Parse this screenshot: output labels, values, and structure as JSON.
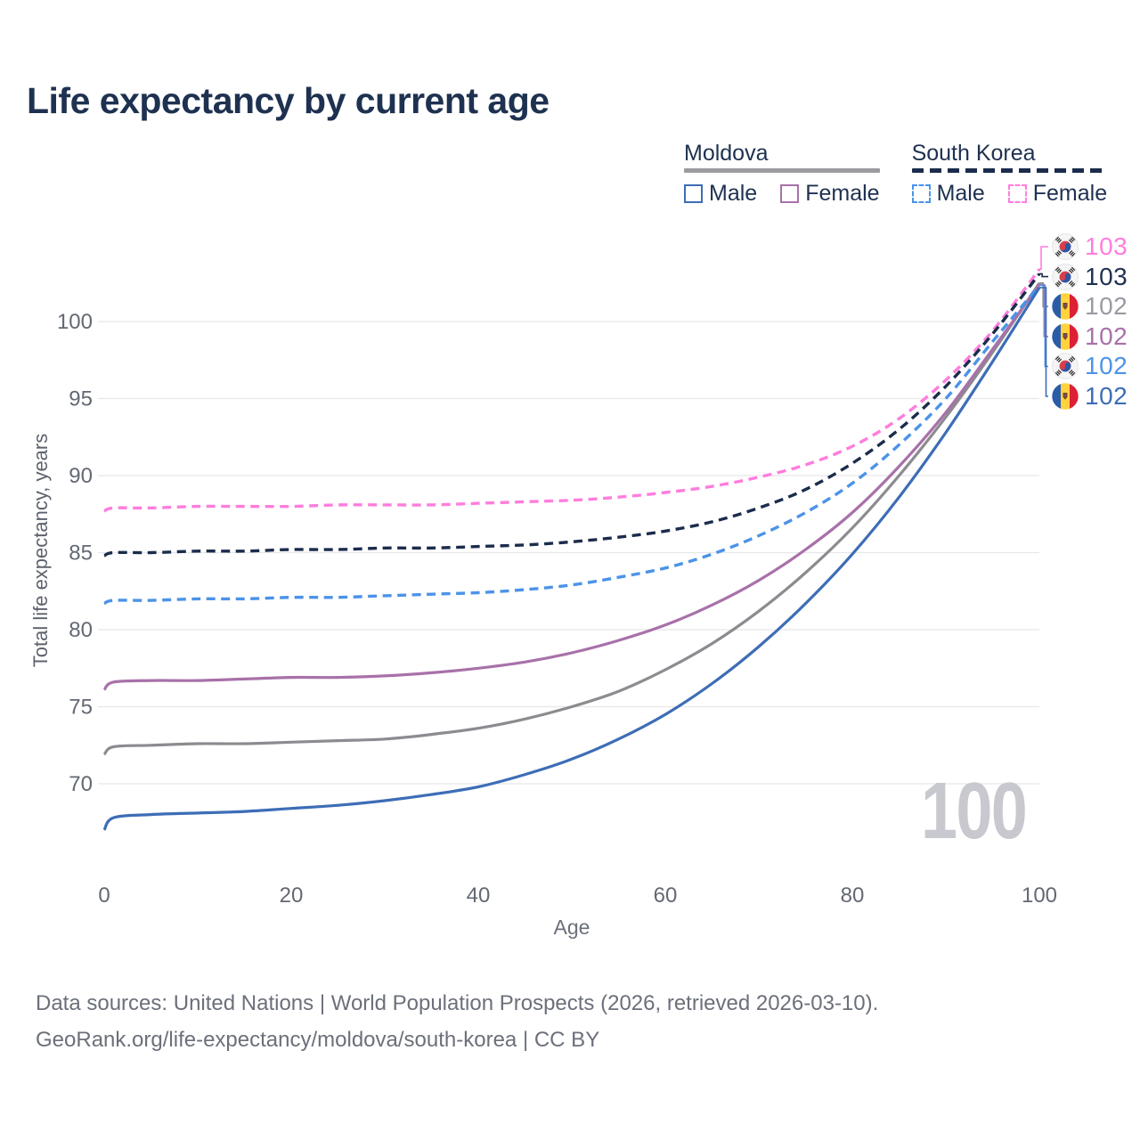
{
  "title": "Life expectancy by current age",
  "watermark_age": "100",
  "legend": {
    "groups": [
      {
        "name": "Moldova",
        "line_style": "solid",
        "line_color": "#9b9ba1",
        "items": [
          {
            "label": "Male",
            "color": "#3d6db6",
            "dashed": false
          },
          {
            "label": "Female",
            "color": "#a871a9",
            "dashed": false
          }
        ]
      },
      {
        "name": "South Korea",
        "line_style": "dashed",
        "line_color": "#1b2c4c",
        "items": [
          {
            "label": "Male",
            "color": "#4b93e8",
            "dashed": true
          },
          {
            "label": "Female",
            "color": "#ff7ddd",
            "dashed": true
          }
        ]
      }
    ]
  },
  "chart_data": {
    "type": "line",
    "title": "Life expectancy by current age",
    "xlabel": "Age",
    "ylabel": "Total life expectancy, years",
    "xlim": [
      0,
      100
    ],
    "ylim": [
      66,
      104
    ],
    "xticks": [
      0,
      20,
      40,
      60,
      80,
      100
    ],
    "yticks": [
      70,
      75,
      80,
      85,
      90,
      95,
      100
    ],
    "grid": "horizontal-only",
    "legend_position": "top-right",
    "x": [
      0,
      1,
      5,
      10,
      15,
      20,
      25,
      30,
      35,
      40,
      45,
      50,
      55,
      60,
      65,
      70,
      75,
      80,
      85,
      90,
      95,
      100
    ],
    "series": [
      {
        "name": "South Korea Female",
        "country": "south-korea",
        "color": "#ff7ddd",
        "label_color": "#ff7ddd",
        "dashed": true,
        "end_label": "103",
        "values": [
          87.7,
          87.9,
          87.9,
          88.0,
          88.0,
          88.0,
          88.1,
          88.1,
          88.1,
          88.2,
          88.3,
          88.4,
          88.6,
          88.9,
          89.3,
          89.9,
          90.7,
          91.9,
          93.7,
          96.2,
          99.4,
          103.4
        ]
      },
      {
        "name": "South Korea Both sexes",
        "country": "south-korea",
        "color": "#1b2c4c",
        "label_color": "#1e3150",
        "dashed": true,
        "end_label": "103",
        "values": [
          84.8,
          85.0,
          85.0,
          85.1,
          85.1,
          85.2,
          85.2,
          85.3,
          85.3,
          85.4,
          85.5,
          85.7,
          86.0,
          86.4,
          87.0,
          87.9,
          89.1,
          90.8,
          93.0,
          95.8,
          99.2,
          103.1
        ]
      },
      {
        "name": "Moldova Both sexes",
        "country": "moldova",
        "color": "#8b8b90",
        "label_color": "#9a9aa2",
        "dashed": false,
        "end_label": "102",
        "values": [
          71.9,
          72.4,
          72.5,
          72.6,
          72.6,
          72.7,
          72.8,
          72.9,
          73.2,
          73.6,
          74.2,
          75.0,
          76.0,
          77.4,
          79.1,
          81.2,
          83.7,
          86.6,
          90.0,
          93.8,
          98.0,
          102.5
        ]
      },
      {
        "name": "Moldova Female",
        "country": "moldova",
        "color": "#a871a9",
        "label_color": "#a871a9",
        "dashed": false,
        "end_label": "102",
        "values": [
          76.1,
          76.6,
          76.7,
          76.7,
          76.8,
          76.9,
          76.9,
          77.0,
          77.2,
          77.5,
          77.9,
          78.5,
          79.3,
          80.3,
          81.6,
          83.2,
          85.2,
          87.6,
          90.6,
          94.1,
          98.2,
          102.4
        ]
      },
      {
        "name": "South Korea Male",
        "country": "south-korea",
        "color": "#4b93e8",
        "label_color": "#4b93e8",
        "dashed": true,
        "end_label": "102",
        "values": [
          81.7,
          81.9,
          81.9,
          82.0,
          82.0,
          82.1,
          82.1,
          82.2,
          82.3,
          82.4,
          82.6,
          82.9,
          83.4,
          84.0,
          84.9,
          86.1,
          87.6,
          89.5,
          92.0,
          95.0,
          98.7,
          102.35
        ]
      },
      {
        "name": "Moldova Male",
        "country": "moldova",
        "color": "#3d6db6",
        "label_color": "#3d6db6",
        "dashed": false,
        "end_label": "102",
        "values": [
          67.0,
          67.8,
          68.0,
          68.1,
          68.2,
          68.4,
          68.6,
          68.9,
          69.3,
          69.8,
          70.6,
          71.6,
          72.9,
          74.5,
          76.5,
          78.9,
          81.7,
          84.9,
          88.6,
          92.8,
          97.4,
          102.2
        ]
      }
    ]
  },
  "footer": {
    "line1": "Data sources: United Nations | World Population Prospects (2026, retrieved 2026-03-10).",
    "line2": "GeoRank.org/life-expectancy/moldova/south-korea | CC BY"
  }
}
